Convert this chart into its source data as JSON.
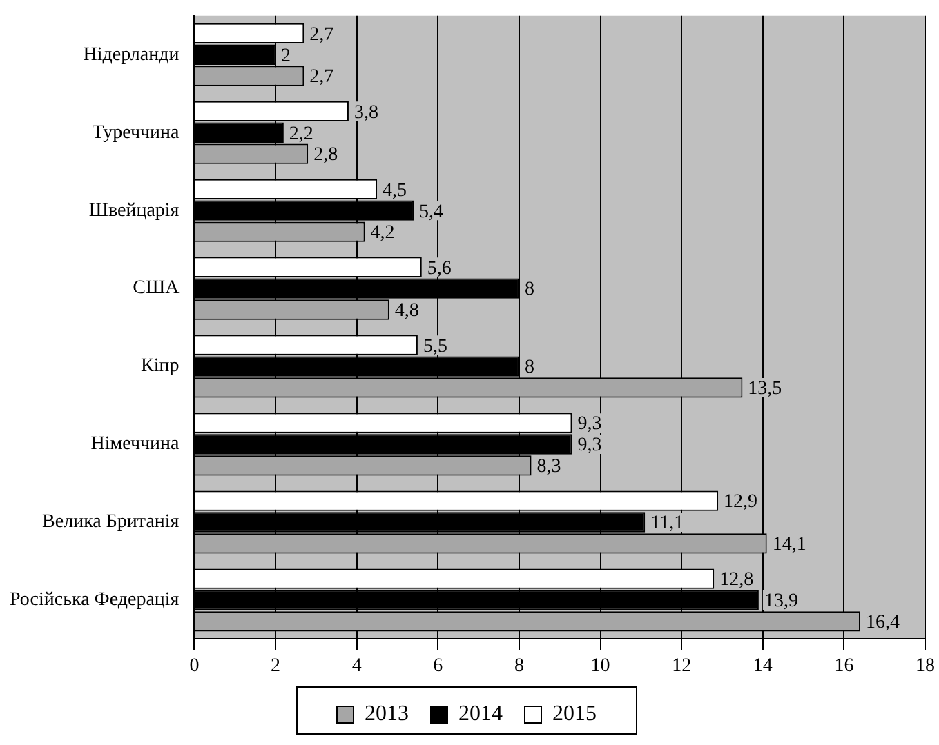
{
  "chart_data": {
    "type": "bar",
    "orientation": "horizontal",
    "categories": [
      "Нідерланди",
      "Туреччина",
      "Швейцарія",
      "США",
      "Кіпр",
      "Німеччина",
      "Велика Британія",
      "Російська Федерація"
    ],
    "series": [
      {
        "name": "2015",
        "color": "#ffffff",
        "values": [
          2.7,
          3.8,
          4.5,
          5.6,
          5.5,
          9.3,
          12.9,
          12.8
        ],
        "value_labels": [
          "2,7",
          "3,8",
          "4,5",
          "5,6",
          "5,5",
          "9,3",
          "12,9",
          "12,8"
        ]
      },
      {
        "name": "2014",
        "color": "#000000",
        "values": [
          2,
          2.2,
          5.4,
          8,
          8,
          9.3,
          11.1,
          13.9
        ],
        "value_labels": [
          "2",
          "2,2",
          "5,4",
          "8",
          "8",
          "9,3",
          "11,1",
          "13,9"
        ]
      },
      {
        "name": "2013",
        "color": "#a6a6a6",
        "values": [
          2.7,
          2.8,
          4.2,
          4.8,
          13.5,
          8.3,
          14.1,
          16.4
        ],
        "value_labels": [
          "2,7",
          "2,8",
          "4,2",
          "4,8",
          "13,5",
          "8,3",
          "14,1",
          "16,4"
        ]
      }
    ],
    "xlim": [
      0,
      18
    ],
    "xticks": [
      0,
      2,
      4,
      6,
      8,
      10,
      12,
      14,
      16,
      18
    ],
    "grid": "x",
    "legend": "bottom"
  }
}
